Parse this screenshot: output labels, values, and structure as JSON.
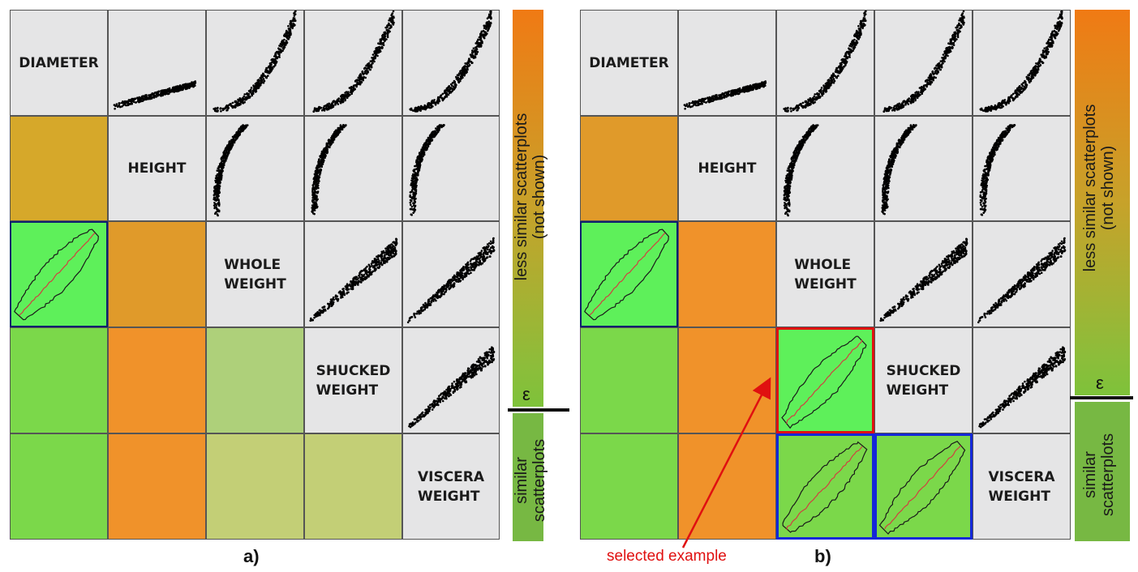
{
  "colors": {
    "orange_top": "#f07a14",
    "green_bottom": "#6fbf3a",
    "cell_gray": "#e5e5e6",
    "cell_green": "#7bd84a",
    "cell_green_bright": "#5ef05a",
    "cell_orange": "#f0922a",
    "cell_ochre": "#d6a82a",
    "cell_ochre2": "#e09a2a",
    "cell_pale_green": "#aed07a",
    "cell_yellowgreen": "#c3cf76",
    "select_red": "#e01010",
    "select_blue": "#1428d8"
  },
  "variables": [
    "DIAMETER",
    "HEIGHT",
    "WHOLE\nWEIGHT",
    "SHUCKED\nWEIGHT",
    "VISCERA\nWEIGHT"
  ],
  "panel_a": {
    "caption": "a)",
    "lower_cells": [
      {
        "row": 1,
        "col": 0,
        "fill": "ochre"
      },
      {
        "row": 2,
        "col": 0,
        "fill": "green-bright",
        "glyph": "density-outline",
        "selection": "navy"
      },
      {
        "row": 2,
        "col": 1,
        "fill": "ochre2"
      },
      {
        "row": 3,
        "col": 0,
        "fill": "green"
      },
      {
        "row": 3,
        "col": 1,
        "fill": "orange"
      },
      {
        "row": 3,
        "col": 2,
        "fill": "pale-green"
      },
      {
        "row": 4,
        "col": 0,
        "fill": "green"
      },
      {
        "row": 4,
        "col": 1,
        "fill": "orange"
      },
      {
        "row": 4,
        "col": 2,
        "fill": "yellowgreen"
      },
      {
        "row": 4,
        "col": 3,
        "fill": "yellowgreen"
      }
    ]
  },
  "panel_b": {
    "caption": "b)",
    "annotation": "selected example",
    "lower_cells": [
      {
        "row": 1,
        "col": 0,
        "fill": "ochre2"
      },
      {
        "row": 2,
        "col": 0,
        "fill": "green-bright",
        "glyph": "density-outline",
        "selection": "navy"
      },
      {
        "row": 2,
        "col": 1,
        "fill": "orange"
      },
      {
        "row": 3,
        "col": 0,
        "fill": "green"
      },
      {
        "row": 3,
        "col": 1,
        "fill": "orange"
      },
      {
        "row": 3,
        "col": 2,
        "fill": "green-bright",
        "glyph": "density-outline",
        "selection": "red"
      },
      {
        "row": 4,
        "col": 0,
        "fill": "green"
      },
      {
        "row": 4,
        "col": 1,
        "fill": "orange"
      },
      {
        "row": 4,
        "col": 2,
        "fill": "green",
        "glyph": "density-outline",
        "selection": "blue"
      },
      {
        "row": 4,
        "col": 3,
        "fill": "green",
        "glyph": "density-outline",
        "selection": "blue"
      }
    ]
  },
  "legend": {
    "top_label": "less similar scatterplots\n(not shown)",
    "bottom_label": "similar\nscatterplots",
    "threshold_symbol": "ε"
  }
}
